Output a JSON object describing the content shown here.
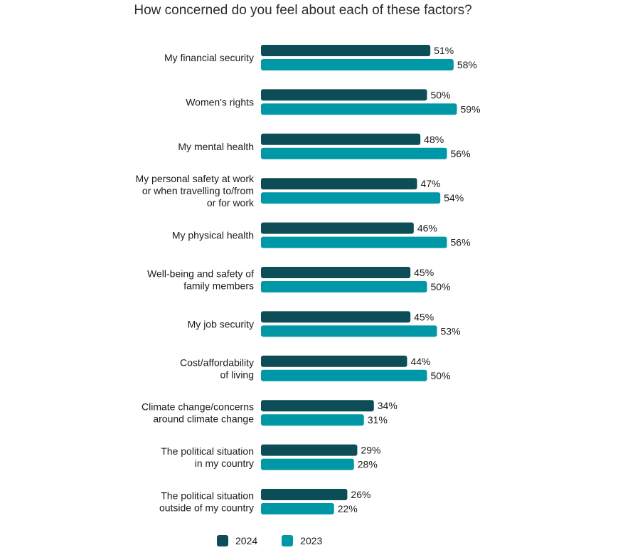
{
  "chart_data": {
    "type": "bar",
    "orientation": "horizontal",
    "title": "How concerned do you feel about each of these factors?",
    "categories": [
      [
        "My financial security"
      ],
      [
        "Women's rights"
      ],
      [
        "My mental health"
      ],
      [
        "My personal safety at work",
        "or when travelling to/from",
        "or for work"
      ],
      [
        "My physical health"
      ],
      [
        "Well-being and safety of",
        "family members"
      ],
      [
        "My job security"
      ],
      [
        "Cost/affordability",
        "of living"
      ],
      [
        "Climate change/concerns",
        "around climate change"
      ],
      [
        "The political situation",
        "in my country"
      ],
      [
        "The political situation",
        "outside of my country"
      ]
    ],
    "series": [
      {
        "name": "2024",
        "color": "#0d4d57",
        "values": [
          51,
          50,
          48,
          47,
          46,
          45,
          45,
          44,
          34,
          29,
          26
        ]
      },
      {
        "name": "2023",
        "color": "#0097a7",
        "values": [
          58,
          59,
          56,
          54,
          56,
          50,
          53,
          50,
          31,
          28,
          22
        ]
      }
    ],
    "value_suffix": "%",
    "xlim": [
      0,
      100
    ],
    "grid": false,
    "legend": "bottom-center"
  }
}
